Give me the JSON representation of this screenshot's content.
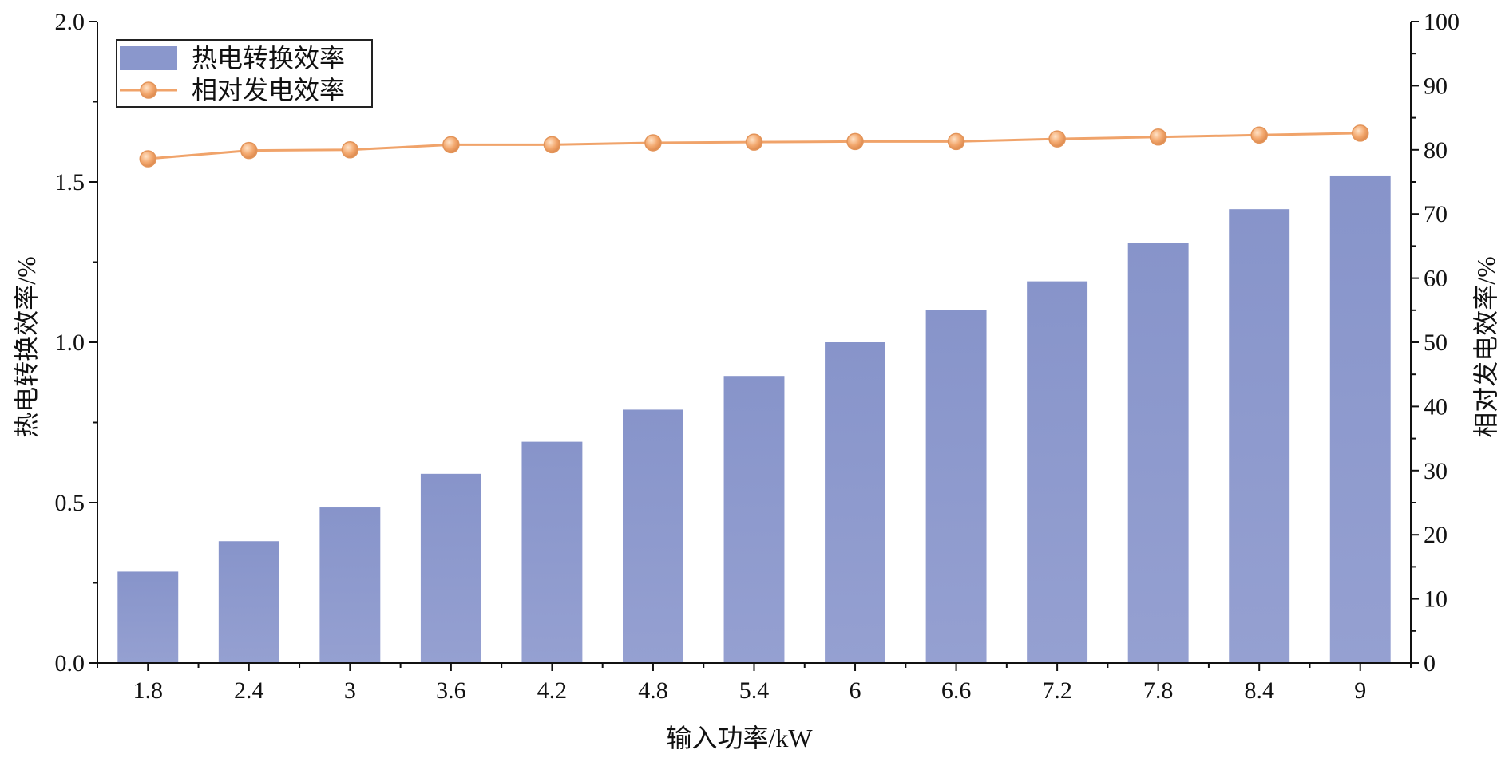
{
  "chart_data": {
    "type": "bar",
    "categories": [
      "1.8",
      "2.4",
      "3",
      "3.6",
      "4.2",
      "4.8",
      "5.4",
      "6",
      "6.6",
      "7.2",
      "7.8",
      "8.4",
      "9"
    ],
    "xlabel": "输入功率/kW",
    "ylabel": "热电转换效率/%",
    "ylabel_right": "相对发电效率/%",
    "ylim": [
      0,
      2.0
    ],
    "ylim_right": [
      0,
      100
    ],
    "yticks": [
      "0.0",
      "0.5",
      "1.0",
      "1.5",
      "2.0"
    ],
    "yticks_right": [
      "0",
      "10",
      "20",
      "30",
      "40",
      "50",
      "60",
      "70",
      "80",
      "90",
      "100"
    ],
    "series": [
      {
        "name": "热电转换效率",
        "type": "bar",
        "axis": "left",
        "color": "#8a97cc",
        "values": [
          0.285,
          0.38,
          0.485,
          0.59,
          0.69,
          0.79,
          0.895,
          1.0,
          1.1,
          1.19,
          1.31,
          1.415,
          1.52
        ]
      },
      {
        "name": "相对发电效率",
        "type": "line",
        "axis": "right",
        "color": "#f0a36a",
        "values": [
          78.6,
          79.9,
          80.0,
          80.8,
          80.8,
          81.1,
          81.2,
          81.3,
          81.3,
          81.7,
          82.0,
          82.3,
          82.6
        ]
      }
    ],
    "legend_position": "top-left",
    "grid": false
  }
}
